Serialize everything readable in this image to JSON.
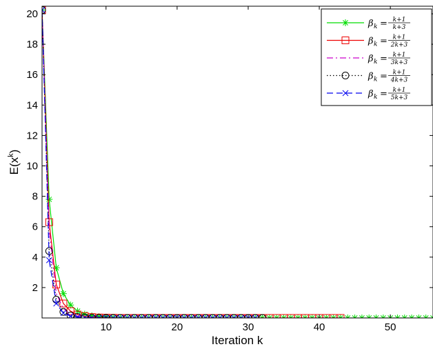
{
  "chart_data": {
    "type": "line",
    "title": "",
    "xlabel": "Iteration k",
    "ylabel_main": "E(x",
    "ylabel_sup": "k",
    "ylabel_close": ")",
    "xlim": [
      1,
      56
    ],
    "ylim": [
      0,
      20.5
    ],
    "xticks": [
      10,
      20,
      30,
      40,
      50
    ],
    "yticks": [
      2,
      4,
      6,
      8,
      10,
      12,
      14,
      16,
      18,
      20
    ],
    "grid": false,
    "legend_position": "top-right",
    "series": [
      {
        "name": "β_k = (k+1)/(k+3)",
        "label_beta": "β",
        "label_sub": "k",
        "label_num": "k+1",
        "label_den": "k+3",
        "color": "#00dd00",
        "dash": "",
        "marker": "star",
        "x_start": 1,
        "x_end": 56,
        "values": [
          20.25,
          7.8,
          3.3,
          1.6,
          0.85,
          0.45,
          0.25,
          0.14,
          0.08,
          0.05,
          0.03,
          0.02,
          0.01
        ]
      },
      {
        "name": "β_k = (k+1)/(2k+3)",
        "label_beta": "β",
        "label_sub": "k",
        "label_num": "k+1",
        "label_den": "2k+3",
        "color": "#ee0000",
        "dash": "",
        "marker": "square",
        "x_start": 1,
        "x_end": 43,
        "values": [
          20.25,
          6.3,
          2.2,
          0.95,
          0.45,
          0.22,
          0.12,
          0.06,
          0.03,
          0.02,
          0.01
        ]
      },
      {
        "name": "β_k = (k+1)/(3k+3)",
        "label_beta": "β",
        "label_sub": "k",
        "label_num": "k+1",
        "label_den": "3k+3",
        "color": "#cc00cc",
        "dash": "9,4,2,4",
        "marker": "none",
        "x_start": 1,
        "x_end": 31,
        "values": [
          20.25,
          5.8,
          1.6,
          0.6,
          0.25,
          0.12,
          0.06,
          0.03,
          0.01
        ]
      },
      {
        "name": "β_k = (k+1)/(4k+3)",
        "label_beta": "β",
        "label_sub": "k",
        "label_num": "k+1",
        "label_den": "4k+3",
        "color": "#000000",
        "dash": "1.5,3",
        "marker": "circle",
        "x_start": 1,
        "x_end": 32,
        "values": [
          20.25,
          4.4,
          1.2,
          0.4,
          0.16,
          0.07,
          0.03,
          0.01
        ]
      },
      {
        "name": "β_k = (k+1)/(5k+3)",
        "label_beta": "β",
        "label_sub": "k",
        "label_num": "k+1",
        "label_den": "5k+3",
        "color": "#0000ee",
        "dash": "9,5",
        "marker": "x",
        "x_start": 1,
        "x_end": 31,
        "values": [
          20.25,
          3.8,
          0.95,
          0.32,
          0.12,
          0.05,
          0.02,
          0.01
        ]
      }
    ]
  }
}
